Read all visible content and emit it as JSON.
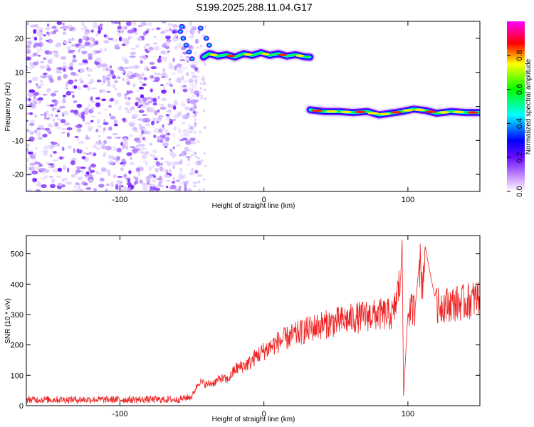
{
  "title": "S199.2025.288.11.04.G17",
  "chart_data": [
    {
      "type": "heatmap",
      "xlabel": "Height of straight line (km)",
      "ylabel": "Frequency (Hz)",
      "xlim": [
        -165,
        150
      ],
      "ylim": [
        -25,
        25
      ],
      "xticks": [
        -100,
        0,
        100
      ],
      "yticks": [
        -20,
        -10,
        0,
        10,
        20
      ],
      "colorbar": {
        "label": "Normalized spectral amplitude",
        "range": [
          0,
          1
        ],
        "ticks": [
          "0.0",
          "0.2",
          "0.4",
          "0.6",
          "0.8"
        ],
        "colors": [
          "#ffffff",
          "#7a10ff",
          "#0000ff",
          "#00ffff",
          "#00ff00",
          "#ffff00",
          "#ff0000",
          "#ff00ff"
        ]
      },
      "tracks": [
        {
          "x": [
            -42,
            -38,
            -32,
            -26,
            -20,
            -14,
            -8,
            -2,
            4,
            10,
            16,
            22,
            28,
            32
          ],
          "y": [
            14.5,
            15.5,
            14.8,
            15.2,
            14.5,
            15.5,
            15.0,
            15.8,
            15.0,
            15.5,
            14.8,
            15.2,
            14.6,
            14.5
          ]
        },
        {
          "x": [
            32,
            42,
            52,
            62,
            72,
            80,
            88,
            96,
            104,
            112,
            120,
            130,
            140,
            150
          ],
          "y": [
            -1.0,
            -1.5,
            -1.5,
            -1.8,
            -1.5,
            -2.5,
            -2.0,
            -1.5,
            -0.8,
            -1.2,
            -2.0,
            -1.5,
            -1.8,
            -1.8
          ]
        }
      ],
      "noise_region_x": [
        -165,
        -55
      ]
    },
    {
      "type": "line",
      "xlabel": "Height of straight line (km)",
      "ylabel": "SNR (10 * v/v)",
      "xlim": [
        -165,
        150
      ],
      "ylim": [
        0,
        560
      ],
      "xticks": [
        -100,
        0,
        100
      ],
      "yticks": [
        0,
        100,
        200,
        300,
        400,
        500
      ],
      "series": [
        {
          "color": "#ee2222",
          "x": [
            -165,
            -140,
            -120,
            -100,
            -80,
            -60,
            -50,
            -45,
            -40,
            -35,
            -30,
            -25,
            -20,
            -15,
            -10,
            -5,
            0,
            5,
            10,
            15,
            20,
            25,
            30,
            40,
            50,
            60,
            70,
            80,
            90,
            95,
            96,
            97,
            100,
            105,
            108,
            110,
            112,
            120,
            130,
            140,
            150
          ],
          "values": [
            20,
            20,
            20,
            20,
            20,
            20,
            30,
            80,
            70,
            75,
            90,
            85,
            120,
            130,
            140,
            165,
            180,
            195,
            210,
            220,
            230,
            240,
            250,
            265,
            275,
            285,
            295,
            300,
            300,
            420,
            550,
            30,
            310,
            320,
            480,
            400,
            520,
            330,
            335,
            340,
            360
          ]
        }
      ]
    }
  ]
}
